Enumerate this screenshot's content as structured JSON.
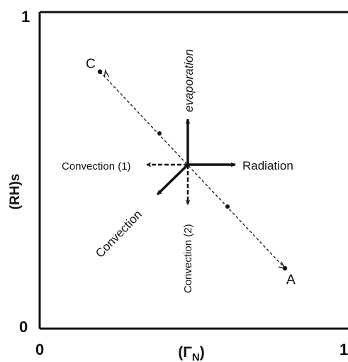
{
  "axes": {
    "x_label": "(Γ",
    "x_label_sub": "N",
    "x_label_close": ")",
    "y_label": "(RH)s",
    "x_ticks": [
      "0",
      "1"
    ],
    "y_ticks": [
      "0",
      "1"
    ]
  },
  "points": {
    "start": "C",
    "end": "A"
  },
  "arrows": {
    "up": "evaporation",
    "right": "Radiation",
    "left": "Convection (1)",
    "down": "Convection (2)",
    "diagonal": "Convection"
  },
  "colors": {
    "ink": "#111111",
    "background": "#ffffff"
  }
}
